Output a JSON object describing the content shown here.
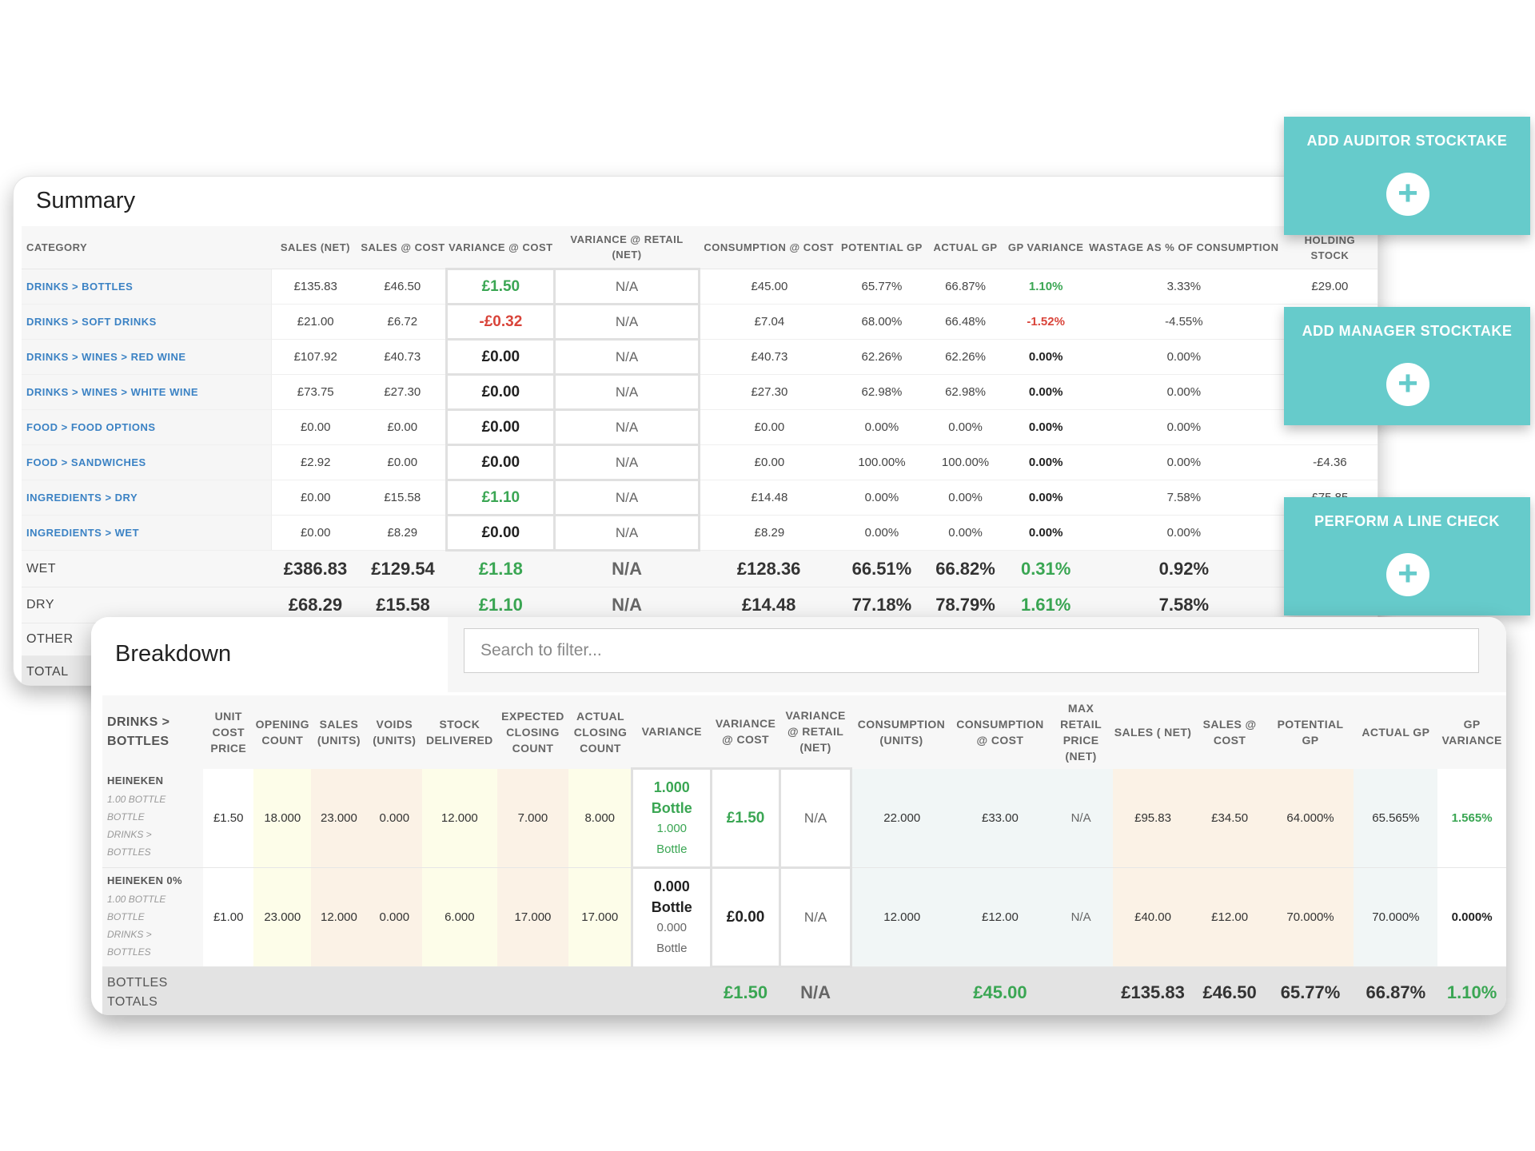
{
  "summary": {
    "title": "Summary",
    "headers": [
      "CATEGORY",
      "SALES (NET)",
      "SALES @ COST",
      "VARIANCE @ COST",
      "VARIANCE @ RETAIL (NET)",
      "CONSUMPTION @ COST",
      "POTENTIAL GP",
      "ACTUAL GP",
      "GP VARIANCE",
      "WASTAGE AS % OF CONSUMPTION",
      "HOLDING STOCK"
    ],
    "rows": [
      {
        "category": "DRINKS > BOTTLES",
        "sales_net": "£135.83",
        "sales_cost": "£46.50",
        "var_cost": "£1.50",
        "var_retail": "N/A",
        "consumption": "£45.00",
        "potential_gp": "65.77%",
        "actual_gp": "66.87%",
        "gp_var": "1.10%",
        "wastage": "3.33%",
        "holding": "£29.00"
      },
      {
        "category": "DRINKS > SOFT DRINKS",
        "sales_net": "£21.00",
        "sales_cost": "£6.72",
        "var_cost": "-£0.32",
        "var_retail": "N/A",
        "consumption": "£7.04",
        "potential_gp": "68.00%",
        "actual_gp": "66.48%",
        "gp_var": "-1.52%",
        "wastage": "-4.55%",
        "holding": ""
      },
      {
        "category": "DRINKS > WINES > RED WINE",
        "sales_net": "£107.92",
        "sales_cost": "£40.73",
        "var_cost": "£0.00",
        "var_retail": "N/A",
        "consumption": "£40.73",
        "potential_gp": "62.26%",
        "actual_gp": "62.26%",
        "gp_var": "0.00%",
        "wastage": "0.00%",
        "holding": ""
      },
      {
        "category": "DRINKS > WINES > WHITE WINE",
        "sales_net": "£73.75",
        "sales_cost": "£27.30",
        "var_cost": "£0.00",
        "var_retail": "N/A",
        "consumption": "£27.30",
        "potential_gp": "62.98%",
        "actual_gp": "62.98%",
        "gp_var": "0.00%",
        "wastage": "0.00%",
        "holding": ""
      },
      {
        "category": "FOOD > FOOD OPTIONS",
        "sales_net": "£0.00",
        "sales_cost": "£0.00",
        "var_cost": "£0.00",
        "var_retail": "N/A",
        "consumption": "£0.00",
        "potential_gp": "0.00%",
        "actual_gp": "0.00%",
        "gp_var": "0.00%",
        "wastage": "0.00%",
        "holding": ""
      },
      {
        "category": "FOOD > SANDWICHES",
        "sales_net": "£2.92",
        "sales_cost": "£0.00",
        "var_cost": "£0.00",
        "var_retail": "N/A",
        "consumption": "£0.00",
        "potential_gp": "100.00%",
        "actual_gp": "100.00%",
        "gp_var": "0.00%",
        "wastage": "0.00%",
        "holding": "-£4.36"
      },
      {
        "category": "INGREDIENTS > DRY",
        "sales_net": "£0.00",
        "sales_cost": "£15.58",
        "var_cost": "£1.10",
        "var_retail": "N/A",
        "consumption": "£14.48",
        "potential_gp": "0.00%",
        "actual_gp": "0.00%",
        "gp_var": "0.00%",
        "wastage": "7.58%",
        "holding": "£75.85"
      },
      {
        "category": "INGREDIENTS > WET",
        "sales_net": "£0.00",
        "sales_cost": "£8.29",
        "var_cost": "£0.00",
        "var_retail": "N/A",
        "consumption": "£8.29",
        "potential_gp": "0.00%",
        "actual_gp": "0.00%",
        "gp_var": "0.00%",
        "wastage": "0.00%",
        "holding": ""
      }
    ],
    "totals": [
      {
        "category": "WET",
        "sales_net": "£386.83",
        "sales_cost": "£129.54",
        "var_cost": "£1.18",
        "var_retail": "N/A",
        "consumption": "£128.36",
        "potential_gp": "66.51%",
        "actual_gp": "66.82%",
        "gp_var": "0.31%",
        "wastage": "0.92%",
        "holding": ""
      },
      {
        "category": "DRY",
        "sales_net": "£68.29",
        "sales_cost": "£15.58",
        "var_cost": "£1.10",
        "var_retail": "N/A",
        "consumption": "£14.48",
        "potential_gp": "77.18%",
        "actual_gp": "78.79%",
        "gp_var": "1.61%",
        "wastage": "7.58%",
        "holding": ""
      },
      {
        "category": "OTHER"
      },
      {
        "category": "TOTAL"
      }
    ]
  },
  "actions": {
    "auditor": "ADD AUDITOR STOCKTAKE",
    "manager": "ADD MANAGER STOCKTAKE",
    "line_check": "PERFORM A LINE CHECK",
    "plus": "+"
  },
  "breakdown": {
    "title": "Breakdown",
    "search_placeholder": "Search to filter...",
    "group": "DRINKS > BOTTLES",
    "headers": [
      "UNIT COST PRICE",
      "OPENING COUNT",
      "SALES (UNITS)",
      "VOIDS (UNITS)",
      "STOCK DELIVERED",
      "EXPECTED CLOSING COUNT",
      "ACTUAL CLOSING COUNT",
      "VARIANCE",
      "VARIANCE @ COST",
      "VARIANCE @ RETAIL (NET)",
      "CONSUMPTION (UNITS)",
      "CONSUMPTION @ COST",
      "MAX RETAIL PRICE (NET)",
      "SALES ( NET)",
      "SALES @ COST",
      "POTENTIAL GP",
      "ACTUAL GP",
      "GP VARIANCE"
    ],
    "rows": [
      {
        "name": "HEINEKEN",
        "meta": [
          "1.00 BOTTLE",
          "BOTTLE",
          "DRINKS >",
          "BOTTLES"
        ],
        "unit_cost": "£1.50",
        "opening": "18.000",
        "sales_units": "23.000",
        "voids": "0.000",
        "delivered": "12.000",
        "expected": "7.000",
        "actual": "8.000",
        "variance_big": "1.000",
        "variance_unit": "Bottle",
        "variance_sm": "1.000",
        "variance_sm_unit": "Bottle",
        "var_cost": "£1.50",
        "var_retail": "N/A",
        "cons_units": "22.000",
        "cons_cost": "£33.00",
        "max_retail": "N/A",
        "sales_net": "£95.83",
        "sales_cost": "£34.50",
        "potential_gp": "64.000%",
        "actual_gp": "65.565%",
        "gp_var": "1.565%"
      },
      {
        "name": "HEINEKEN 0%",
        "meta": [
          "1.00 BOTTLE",
          "BOTTLE",
          "DRINKS >",
          "BOTTLES"
        ],
        "unit_cost": "£1.00",
        "opening": "23.000",
        "sales_units": "12.000",
        "voids": "0.000",
        "delivered": "6.000",
        "expected": "17.000",
        "actual": "17.000",
        "variance_big": "0.000",
        "variance_unit": "Bottle",
        "variance_sm": "0.000",
        "variance_sm_unit": "Bottle",
        "var_cost": "£0.00",
        "var_retail": "N/A",
        "cons_units": "12.000",
        "cons_cost": "£12.00",
        "max_retail": "N/A",
        "sales_net": "£40.00",
        "sales_cost": "£12.00",
        "potential_gp": "70.000%",
        "actual_gp": "70.000%",
        "gp_var": "0.000%"
      }
    ],
    "totals": {
      "label": "BOTTLES TOTALS",
      "var_cost": "£1.50",
      "var_retail": "N/A",
      "cons_cost": "£45.00",
      "sales_net": "£135.83",
      "sales_cost": "£46.50",
      "potential_gp": "65.77%",
      "actual_gp": "66.87%",
      "gp_var": "1.10%"
    }
  },
  "colors": {
    "accent": "#66cbcb",
    "positive": "#3aa653",
    "negative": "#d9443a",
    "link": "#3b82c4"
  }
}
